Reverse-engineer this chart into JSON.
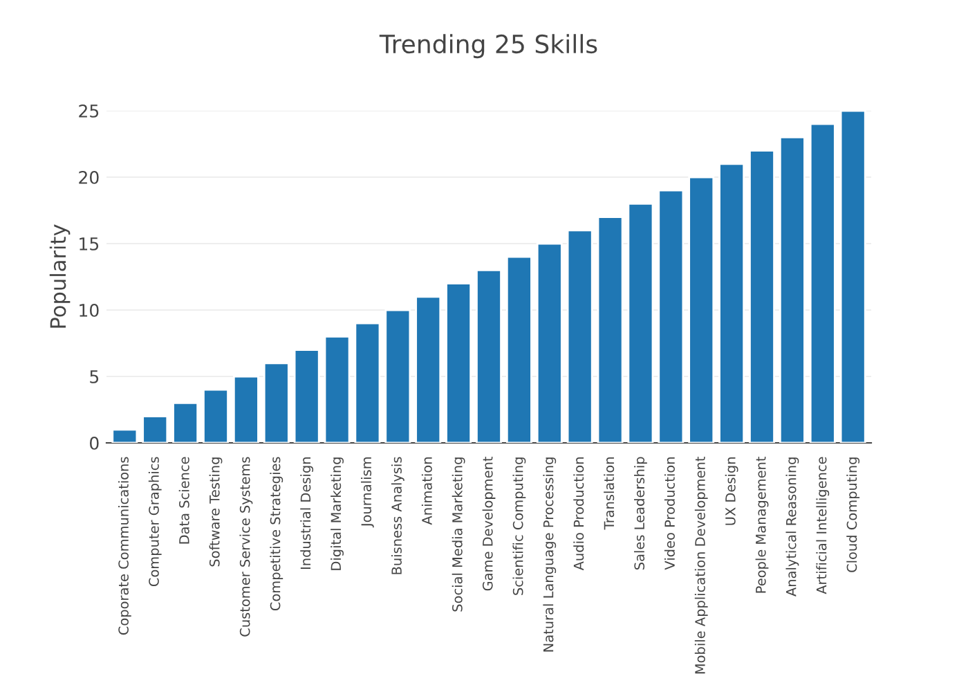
{
  "chart_data": {
    "type": "bar",
    "title": "Trending 25 Skills",
    "ylabel": "Popularity",
    "categories": [
      "Coporate Communications",
      "Computer Graphics",
      "Data Science",
      "Software Testing",
      "Customer Service Systems",
      "Competitive Strategies",
      "Industrial Design",
      "Digital Marketing",
      "Journalism",
      "Buisness Analysis",
      "Animation",
      "Social Media Marketing",
      "Game Development",
      "Scientific Computing",
      "Natural Language Processing",
      "Audio Production",
      "Translation",
      "Sales Leadership",
      "Video Production",
      "Mobile Application Development",
      "UX Design",
      "People Management",
      "Analytical Reasoning",
      "Artificial Intelligence",
      "Cloud Computing"
    ],
    "values": [
      1,
      2,
      3,
      4,
      5,
      6,
      7,
      8,
      9,
      10,
      11,
      12,
      13,
      14,
      15,
      16,
      17,
      18,
      19,
      20,
      21,
      22,
      23,
      24,
      25
    ],
    "color": "#1f77b4",
    "ylim": [
      0,
      25
    ],
    "yticks": [
      0,
      5,
      10,
      15,
      20,
      25
    ],
    "grid": "y",
    "legend": false
  }
}
